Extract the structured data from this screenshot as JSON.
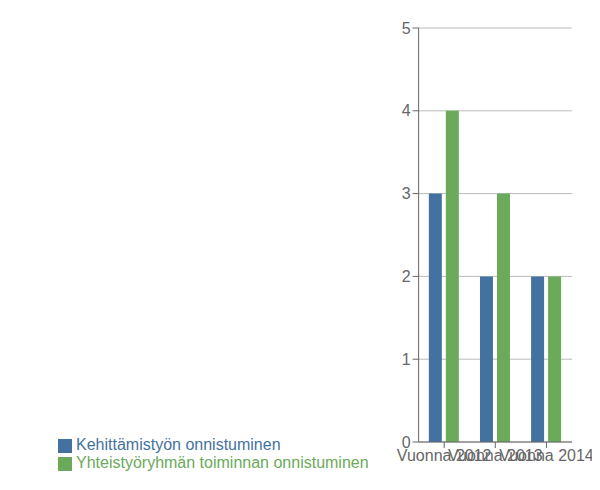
{
  "chart_data": {
    "type": "bar",
    "categories": [
      "Vuonna 2012",
      "Vuonna 2013",
      "Vuonna 2014"
    ],
    "series": [
      {
        "name": "Kehittämistyön onnistuminen",
        "color": "#4472a0",
        "values": [
          3.0,
          2.0,
          2.0
        ]
      },
      {
        "name": "Yhteistyöryhmän toiminnan onnistuminen",
        "color": "#6aaa5a",
        "values": [
          4.0,
          3.0,
          2.0
        ]
      }
    ],
    "ylim": [
      0,
      5
    ],
    "yticks": [
      0,
      1,
      2,
      3,
      4,
      5
    ],
    "grid": true,
    "legend": "bottom"
  }
}
